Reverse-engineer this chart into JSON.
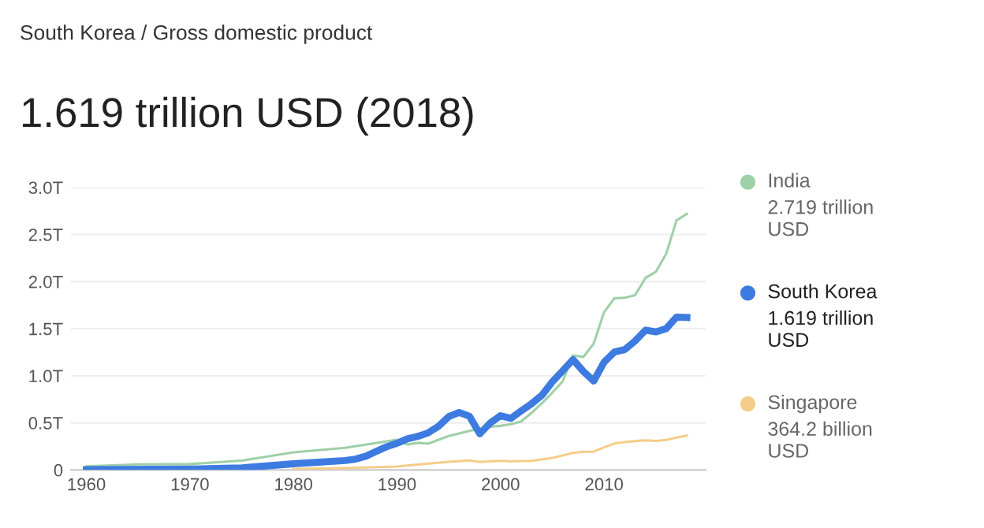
{
  "chart_data": {
    "type": "line",
    "subtitle": "South Korea / Gross domestic product",
    "title": "1.619 trillion USD (2018)",
    "series": [
      {
        "name": "India",
        "color": "#9fd0a8",
        "x": [
          1960,
          1965,
          1970,
          1975,
          1980,
          1985,
          1990,
          1991,
          1992,
          1993,
          1995,
          1997,
          1999,
          2000,
          2001,
          2002,
          2003,
          2004,
          2005,
          2006,
          2007,
          2008,
          2009,
          2010,
          2011,
          2012,
          2013,
          2014,
          2015,
          2016,
          2017,
          2018
        ],
        "values": [
          0.037,
          0.059,
          0.062,
          0.099,
          0.186,
          0.235,
          0.321,
          0.27,
          0.288,
          0.279,
          0.36,
          0.415,
          0.458,
          0.468,
          0.485,
          0.515,
          0.607,
          0.709,
          0.82,
          0.94,
          1.217,
          1.199,
          1.342,
          1.676,
          1.823,
          1.828,
          1.857,
          2.039,
          2.104,
          2.295,
          2.651,
          2.719
        ]
      },
      {
        "name": "South Korea",
        "color": "#3d7be0",
        "x": [
          1960,
          1970,
          1975,
          1980,
          1985,
          1986,
          1987,
          1988,
          1989,
          1990,
          1991,
          1992,
          1993,
          1994,
          1995,
          1996,
          1997,
          1998,
          1999,
          2000,
          2001,
          2002,
          2003,
          2004,
          2005,
          2006,
          2007,
          2008,
          2009,
          2010,
          2011,
          2012,
          2013,
          2014,
          2015,
          2016,
          2017,
          2018
        ],
        "values": [
          0.004,
          0.009,
          0.021,
          0.065,
          0.1,
          0.115,
          0.146,
          0.197,
          0.246,
          0.283,
          0.33,
          0.356,
          0.393,
          0.463,
          0.566,
          0.61,
          0.57,
          0.383,
          0.498,
          0.576,
          0.548,
          0.627,
          0.703,
          0.793,
          0.935,
          1.053,
          1.172,
          1.047,
          0.944,
          1.144,
          1.253,
          1.278,
          1.37,
          1.484,
          1.466,
          1.5,
          1.623,
          1.619
        ]
      },
      {
        "name": "Singapore",
        "color": "#f5cd8a",
        "x": [
          1980,
          1985,
          1990,
          1995,
          1997,
          1998,
          2000,
          2001,
          2003,
          2005,
          2007,
          2008,
          2009,
          2010,
          2011,
          2012,
          2013,
          2014,
          2015,
          2016,
          2017,
          2018
        ],
        "values": [
          0.01,
          0.02,
          0.036,
          0.087,
          0.1,
          0.085,
          0.096,
          0.09,
          0.097,
          0.127,
          0.18,
          0.193,
          0.194,
          0.24,
          0.28,
          0.295,
          0.307,
          0.314,
          0.308,
          0.319,
          0.343,
          0.364
        ]
      }
    ],
    "annotations": [
      "2.719 trillion\nUSD",
      "1.619 trillion\nUSD",
      "364.2 billion\nUSD"
    ],
    "xlim": [
      1958.5,
      2019.8
    ],
    "xticks": [
      1960,
      1970,
      1980,
      1990,
      2000,
      2010
    ],
    "ylim": [
      0,
      3.0
    ],
    "yticks": [
      0,
      {
        "value": 0.5,
        "label": "0.5T"
      },
      {
        "value": 1.0,
        "label": "1.0T"
      },
      {
        "value": 1.5,
        "label": "1.5T"
      },
      {
        "value": 2.0,
        "label": "2.0T"
      },
      {
        "value": 2.5,
        "label": "2.5T"
      },
      {
        "value": 3.0,
        "label": "3.0T"
      }
    ],
    "grid": "y",
    "legend": "right"
  }
}
